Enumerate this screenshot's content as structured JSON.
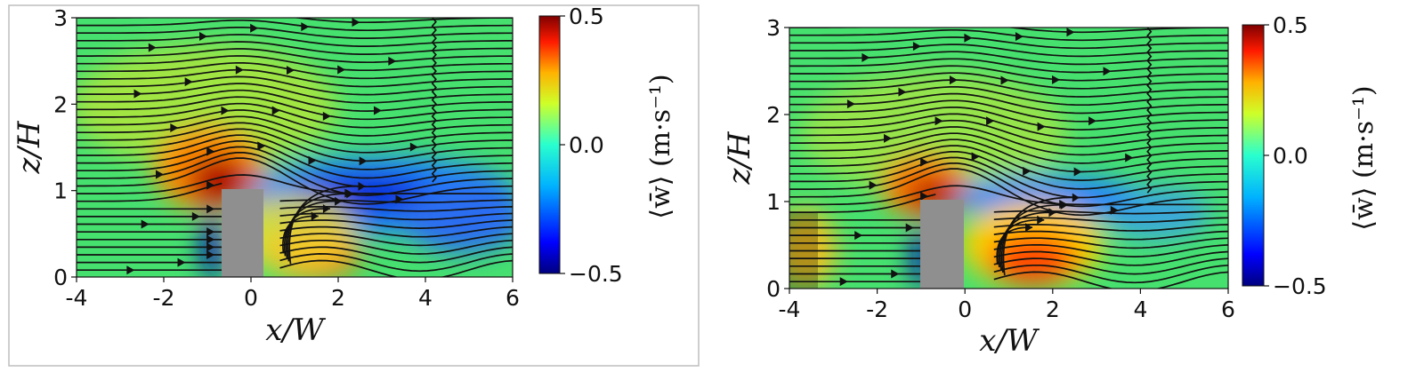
{
  "chart_data": [
    {
      "type": "heatmap",
      "panel": "left",
      "xlabel": "x/W",
      "ylabel": "z/H",
      "xlim": [
        -4,
        6
      ],
      "ylim": [
        0,
        3
      ],
      "xticks": [
        "-4",
        "-2",
        "0",
        "2",
        "4",
        "6"
      ],
      "yticks": [
        "0",
        "1",
        "2",
        "3"
      ],
      "colorbar": {
        "label": "⟨w̄⟩ (m·s⁻¹)",
        "range": [
          -0.5,
          0.5
        ],
        "ticks": [
          "0.5",
          "0.0",
          "−0.5"
        ]
      },
      "obstacle": {
        "x_range": [
          -0.5,
          0.5
        ],
        "z_top": 1.0,
        "color": "#8f8f8f"
      },
      "field_features": [
        {
          "kind": "updraft",
          "x": -0.7,
          "z": 1.1,
          "w": 0.5
        },
        {
          "kind": "downdraft",
          "x": 2.8,
          "z": 0.95,
          "w": -0.45
        },
        {
          "kind": "downdraft",
          "x": -0.8,
          "z": 0.35,
          "w": -0.5
        },
        {
          "kind": "updraft",
          "x": 1.6,
          "z": 0.2,
          "w": 0.35
        }
      ],
      "streamlines": "horizontal flow with recirculation behind obstacle"
    },
    {
      "type": "heatmap",
      "panel": "right",
      "xlabel": "x/W",
      "ylabel": "z/H",
      "xlim": [
        -4,
        6
      ],
      "ylim": [
        0,
        3
      ],
      "xticks": [
        "-4",
        "-2",
        "0",
        "2",
        "4",
        "6"
      ],
      "yticks": [
        "0",
        "1",
        "2",
        "3"
      ],
      "colorbar": {
        "label": "⟨w̄⟩ (m·s⁻¹)",
        "range": [
          -0.5,
          0.5
        ],
        "ticks": [
          "0.5",
          "0.0",
          "−0.5"
        ]
      },
      "obstacle": {
        "x_range": [
          -0.5,
          0.5
        ],
        "z_top": 1.0,
        "color": "#8f8f8f"
      },
      "field_features": [
        {
          "kind": "updraft",
          "x": -0.6,
          "z": 1.05,
          "w": 0.5
        },
        {
          "kind": "downdraft",
          "x": 2.5,
          "z": 0.95,
          "w": -0.3
        },
        {
          "kind": "downdraft",
          "x": -0.8,
          "z": 0.35,
          "w": -0.5
        },
        {
          "kind": "updraft",
          "x": 1.5,
          "z": 0.3,
          "w": 0.4
        }
      ],
      "streamlines": "horizontal flow with recirculation behind obstacle"
    }
  ],
  "colors": {
    "colormap": [
      "#00007f",
      "#0000ff",
      "#007fff",
      "#00e5ff",
      "#7fff7f",
      "#ffe500",
      "#ff7f00",
      "#ff0000",
      "#7f0000"
    ],
    "obstacle": "#8f8f8f"
  }
}
